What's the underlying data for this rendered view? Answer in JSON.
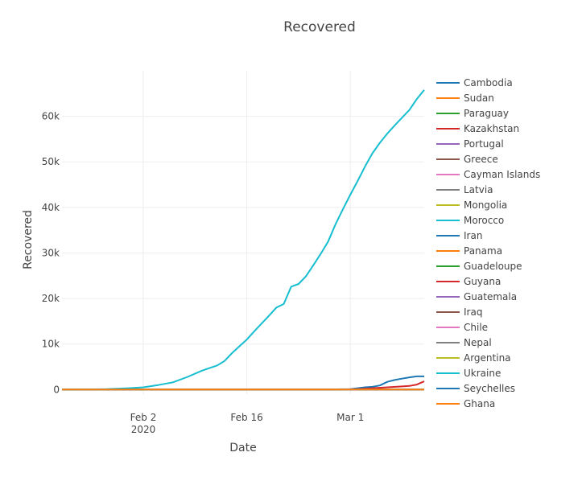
{
  "chart_data": {
    "type": "line",
    "title": "Recovered",
    "xlabel": "Date",
    "ylabel": "Recovered",
    "x_start": "2020-01-22",
    "x_end": "2020-03-11",
    "ylim": [
      -1000,
      70000
    ],
    "xticks": [
      {
        "date": "2020-02-02",
        "label": "Feb 2",
        "sublabel": "2020"
      },
      {
        "date": "2020-02-16",
        "label": "Feb 16",
        "sublabel": ""
      },
      {
        "date": "2020-03-01",
        "label": "Mar 1",
        "sublabel": ""
      }
    ],
    "yticks": [
      {
        "value": 0,
        "label": "0"
      },
      {
        "value": 10000,
        "label": "10k"
      },
      {
        "value": 20000,
        "label": "20k"
      },
      {
        "value": 30000,
        "label": "30k"
      },
      {
        "value": 40000,
        "label": "40k"
      },
      {
        "value": 50000,
        "label": "50k"
      },
      {
        "value": 60000,
        "label": "60k"
      }
    ],
    "grid": true,
    "legend_position": "right",
    "series": [
      {
        "name": "Cambodia",
        "color": "#1f77b4",
        "x": [
          "2020-01-22",
          "2020-03-11"
        ],
        "values": [
          0,
          0
        ]
      },
      {
        "name": "Sudan",
        "color": "#ff7f0e",
        "x": [
          "2020-01-22",
          "2020-03-11"
        ],
        "values": [
          0,
          0
        ]
      },
      {
        "name": "Paraguay",
        "color": "#2ca02c",
        "x": [
          "2020-01-22",
          "2020-03-11"
        ],
        "values": [
          0,
          0
        ]
      },
      {
        "name": "Kazakhstan",
        "color": "#d62728",
        "x": [
          "2020-01-22",
          "2020-03-11"
        ],
        "values": [
          0,
          0
        ]
      },
      {
        "name": "Portugal",
        "color": "#9467bd",
        "x": [
          "2020-01-22",
          "2020-03-11"
        ],
        "values": [
          0,
          0
        ]
      },
      {
        "name": "Greece",
        "color": "#8c564b",
        "x": [
          "2020-01-22",
          "2020-03-11"
        ],
        "values": [
          0,
          0
        ]
      },
      {
        "name": "Cayman Islands",
        "color": "#e377c2",
        "x": [
          "2020-01-22",
          "2020-03-11"
        ],
        "values": [
          0,
          0
        ]
      },
      {
        "name": "Latvia",
        "color": "#7f7f7f",
        "x": [
          "2020-01-22",
          "2020-03-11"
        ],
        "values": [
          0,
          0
        ]
      },
      {
        "name": "Mongolia",
        "color": "#bcbd22",
        "x": [
          "2020-01-22",
          "2020-03-11"
        ],
        "values": [
          0,
          0
        ]
      },
      {
        "name": "Morocco",
        "color": "#17becf",
        "x": [
          "2020-01-22",
          "2020-03-11"
        ],
        "values": [
          0,
          0
        ]
      },
      {
        "name": "Iran",
        "color": "#1f77b4",
        "x": [
          "2020-01-22",
          "2020-02-26",
          "2020-03-01",
          "2020-03-02",
          "2020-03-03",
          "2020-03-04",
          "2020-03-05",
          "2020-03-06",
          "2020-03-07",
          "2020-03-08",
          "2020-03-09",
          "2020-03-10",
          "2020-03-11"
        ],
        "values": [
          0,
          0,
          100,
          300,
          500,
          600,
          900,
          1700,
          2100,
          2400,
          2700,
          2900,
          2900
        ]
      },
      {
        "name": "Panama",
        "color": "#ff7f0e",
        "x": [
          "2020-01-22",
          "2020-03-11"
        ],
        "values": [
          0,
          0
        ]
      },
      {
        "name": "Guadeloupe",
        "color": "#2ca02c",
        "x": [
          "2020-01-22",
          "2020-03-11"
        ],
        "values": [
          0,
          0
        ]
      },
      {
        "name": "Guyana",
        "color": "#d62728",
        "x": [
          "2020-01-22",
          "2020-02-28",
          "2020-03-02",
          "2020-03-04",
          "2020-03-06",
          "2020-03-08",
          "2020-03-09",
          "2020-03-10",
          "2020-03-11"
        ],
        "values": [
          0,
          0,
          100,
          300,
          500,
          700,
          800,
          1100,
          1800
        ]
      },
      {
        "name": "Guatemala",
        "color": "#9467bd",
        "x": [
          "2020-01-22",
          "2020-03-11"
        ],
        "values": [
          0,
          0
        ]
      },
      {
        "name": "Iraq",
        "color": "#8c564b",
        "x": [
          "2020-01-22",
          "2020-03-11"
        ],
        "values": [
          0,
          0
        ]
      },
      {
        "name": "Chile",
        "color": "#e377c2",
        "x": [
          "2020-01-22",
          "2020-03-11"
        ],
        "values": [
          0,
          0
        ]
      },
      {
        "name": "Nepal",
        "color": "#7f7f7f",
        "x": [
          "2020-01-22",
          "2020-03-11"
        ],
        "values": [
          0,
          0
        ]
      },
      {
        "name": "Argentina",
        "color": "#bcbd22",
        "x": [
          "2020-01-22",
          "2020-03-11"
        ],
        "values": [
          0,
          0
        ]
      },
      {
        "name": "Ukraine",
        "color": "#17becf",
        "x": [
          "2020-01-22",
          "2020-01-25",
          "2020-01-28",
          "2020-01-31",
          "2020-02-02",
          "2020-02-04",
          "2020-02-06",
          "2020-02-08",
          "2020-02-10",
          "2020-02-12",
          "2020-02-13",
          "2020-02-14",
          "2020-02-15",
          "2020-02-16",
          "2020-02-17",
          "2020-02-18",
          "2020-02-19",
          "2020-02-20",
          "2020-02-21",
          "2020-02-22",
          "2020-02-23",
          "2020-02-24",
          "2020-02-25",
          "2020-02-26",
          "2020-02-27",
          "2020-02-28",
          "2020-02-29",
          "2020-03-01",
          "2020-03-02",
          "2020-03-03",
          "2020-03-04",
          "2020-03-05",
          "2020-03-06",
          "2020-03-07",
          "2020-03-08",
          "2020-03-09",
          "2020-03-10",
          "2020-03-11"
        ],
        "values": [
          0,
          50,
          100,
          300,
          500,
          1000,
          1600,
          2800,
          4200,
          5300,
          6300,
          8000,
          9500,
          11000,
          12800,
          14500,
          16200,
          18000,
          18800,
          22600,
          23200,
          24900,
          27300,
          29800,
          32500,
          36300,
          39600,
          42800,
          45800,
          49000,
          51900,
          54200,
          56200,
          58000,
          59700,
          61400,
          63800,
          65800
        ]
      },
      {
        "name": "Seychelles",
        "color": "#1f77b4",
        "x": [
          "2020-01-22",
          "2020-03-11"
        ],
        "values": [
          0,
          0
        ]
      },
      {
        "name": "Ghana",
        "color": "#ff7f0e",
        "x": [
          "2020-01-22",
          "2020-03-11"
        ],
        "values": [
          0,
          0
        ]
      }
    ]
  }
}
